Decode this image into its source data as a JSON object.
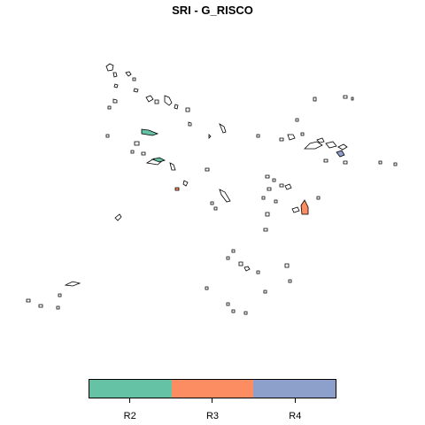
{
  "title": "SRI - G_RISCO",
  "legend": {
    "items": [
      {
        "label": "R2",
        "color": "#66c2a5"
      },
      {
        "label": "R3",
        "color": "#fc8d62"
      },
      {
        "label": "R4",
        "color": "#8da0cb"
      }
    ]
  },
  "map": {
    "outline_color": "#000000"
  }
}
